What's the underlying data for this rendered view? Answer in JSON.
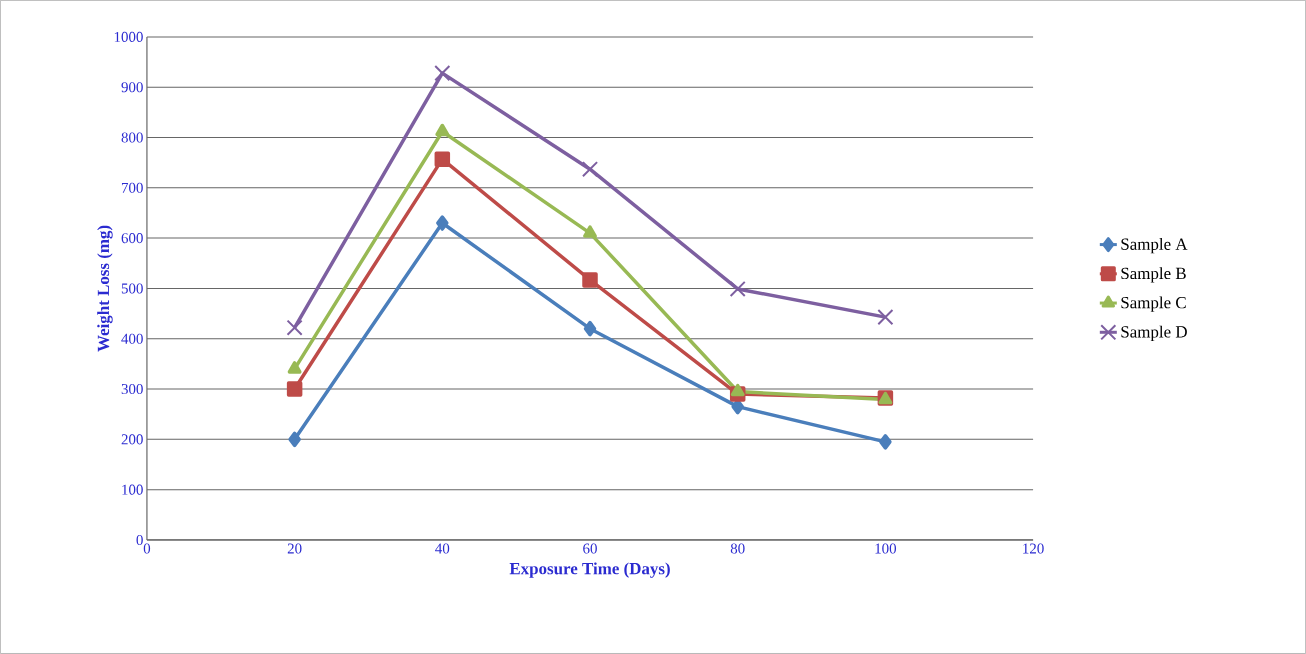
{
  "chart_data": {
    "type": "line",
    "xlabel": "Exposure Time (Days)",
    "ylabel": "Weight Loss (mg)",
    "x": [
      20,
      40,
      60,
      80,
      100
    ],
    "series": [
      {
        "name": "Sample  A",
        "color": "#4a7ebb",
        "marker": "diamond",
        "values": [
          200,
          630,
          420,
          265,
          195
        ]
      },
      {
        "name": "Sample  B",
        "color": "#be4b48",
        "marker": "square",
        "values": [
          300,
          757,
          517,
          290,
          282
        ]
      },
      {
        "name": "Sample  C",
        "color": "#98b954",
        "marker": "triangle",
        "values": [
          340,
          812,
          610,
          295,
          279
        ]
      },
      {
        "name": "Sample  D",
        "color": "#7d5fa0",
        "marker": "cross",
        "values": [
          422,
          928,
          737,
          499,
          443
        ]
      }
    ],
    "xlim": [
      0,
      120
    ],
    "xticks": [
      0,
      20,
      40,
      60,
      80,
      100,
      120
    ],
    "ylim": [
      0,
      1000
    ],
    "yticks": [
      0,
      100,
      200,
      300,
      400,
      500,
      600,
      700,
      800,
      900,
      1000
    ],
    "grid": "y",
    "legend": "right",
    "line_style": "solid"
  }
}
